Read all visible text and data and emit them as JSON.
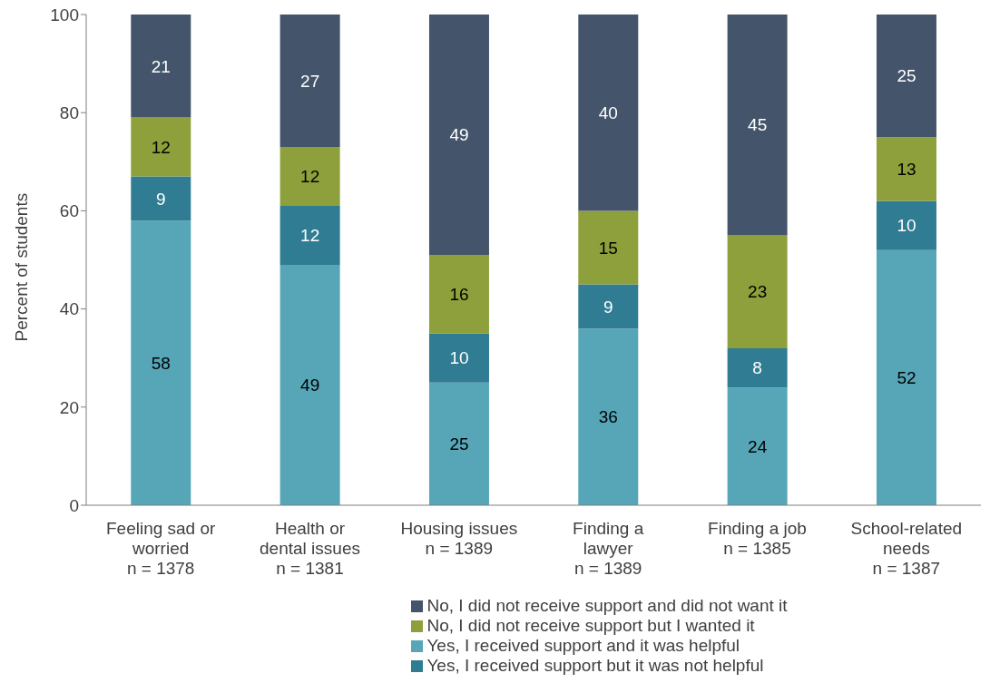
{
  "chart_data": {
    "type": "bar",
    "stacked": true,
    "ylabel": "Percent of students",
    "categories": [
      "Feeling sad or\nworried\nn = 1378",
      "Health or\ndental issues\nn = 1381",
      "Housing issues\nn = 1389",
      "Finding a\nlawyer\nn = 1389",
      "Finding a job\nn = 1385",
      "School-related\nneeds\nn = 1387"
    ],
    "series": [
      {
        "name": "Yes, I received support and it was helpful",
        "color": "#56a6b8",
        "values": [
          58,
          49,
          25,
          36,
          24,
          52
        ]
      },
      {
        "name": "Yes, I received support but it was not helpful",
        "color": "#2f7c93",
        "values": [
          9,
          12,
          10,
          9,
          8,
          10
        ]
      },
      {
        "name": "No, I did not receive support but I wanted it",
        "color": "#8da03b",
        "values": [
          12,
          12,
          16,
          15,
          23,
          13
        ]
      },
      {
        "name": "No, I did not receive support and did not want it",
        "color": "#44546a",
        "values": [
          21,
          27,
          49,
          40,
          45,
          25
        ]
      }
    ],
    "ylim": [
      0,
      100
    ],
    "yticks": [
      0,
      20,
      40,
      60,
      80,
      100
    ],
    "legend": "bottom",
    "data_labels": true
  }
}
